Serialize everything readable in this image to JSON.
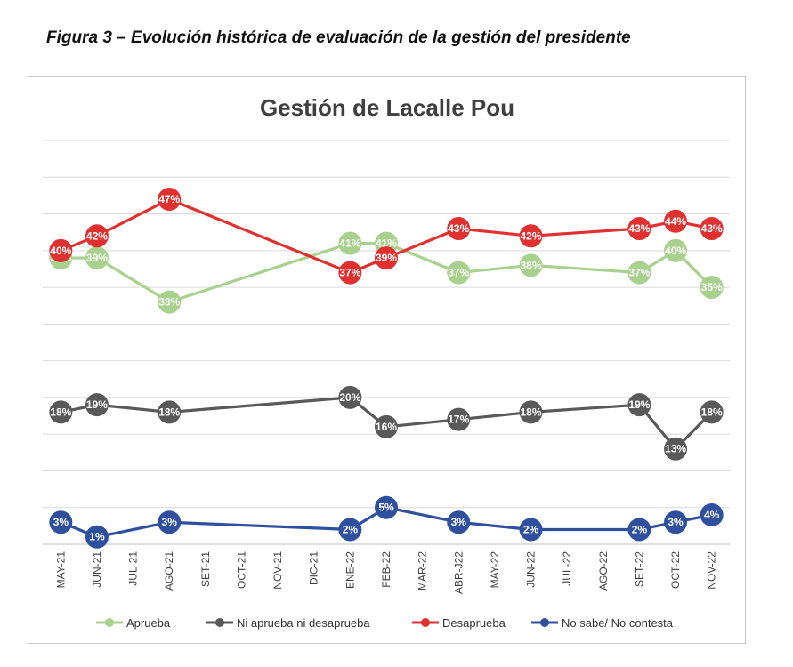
{
  "figure_caption": "Figura 3 – Evolución histórica de evaluación de la gestión del presidente",
  "chart_data": {
    "type": "line",
    "title": "Gestión de Lacalle Pou",
    "xlabel": "",
    "ylabel": "",
    "categories": [
      "MAY-21",
      "JUN-21",
      "JUL-21",
      "AGO-21",
      "SET-21",
      "OCT-21",
      "NOV-21",
      "DIC-21",
      "ENE-22",
      "FEB-22",
      "MAR-22",
      "ABR-J22",
      "MAY-22",
      "JUN-22",
      "JUL-22",
      "AGO-22",
      "SET-22",
      "OCT-22",
      "NOV-22"
    ],
    "ylim": [
      0,
      55
    ],
    "grid": true,
    "legend_position": "bottom",
    "series": [
      {
        "name": "Aprueba",
        "color": "#a9d18e",
        "values": [
          39,
          39,
          null,
          33,
          null,
          null,
          null,
          null,
          41,
          41,
          null,
          37,
          null,
          38,
          null,
          null,
          37,
          40,
          35
        ]
      },
      {
        "name": "Ni aprueba ni desaprueba",
        "color": "#595959",
        "values": [
          18,
          19,
          null,
          18,
          null,
          null,
          null,
          null,
          20,
          16,
          null,
          17,
          null,
          18,
          null,
          null,
          19,
          13,
          18
        ]
      },
      {
        "name": "Desaprueba",
        "color": "#e03030",
        "values": [
          40,
          42,
          null,
          47,
          null,
          null,
          null,
          null,
          37,
          39,
          null,
          43,
          null,
          42,
          null,
          null,
          43,
          44,
          43
        ]
      },
      {
        "name": "No sabe/ No contesta",
        "color": "#2f4f9f",
        "values": [
          3,
          1,
          null,
          3,
          null,
          null,
          null,
          null,
          2,
          5,
          null,
          3,
          null,
          2,
          null,
          null,
          2,
          3,
          4
        ]
      }
    ]
  }
}
